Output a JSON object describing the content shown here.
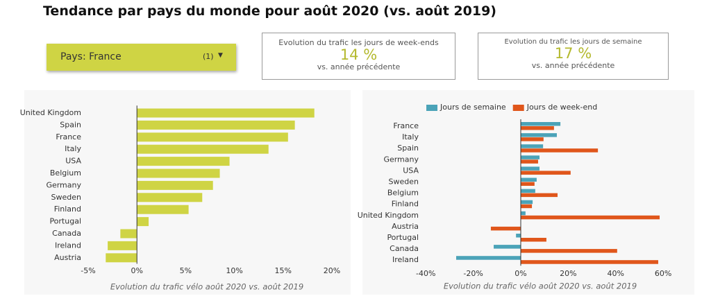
{
  "header": {
    "title": "Tendance par pays du monde pour août 2020 (vs. août 2019)"
  },
  "filter": {
    "label": "Pays:",
    "value": "France",
    "count": "(1)"
  },
  "kpis": [
    {
      "title": "Evolution du trafic les jours de week-ends",
      "value": "14 %",
      "subtitle": "vs. année précédente"
    },
    {
      "title": "Evolution du trafic les jours de semaine",
      "value": "17 %",
      "subtitle": "vs. année précédente"
    }
  ],
  "chart_data": [
    {
      "type": "hbar",
      "x_label": "Evolution du trafic vélo août 2020 vs. août 2019",
      "categories": [
        "United Kingdom",
        "Spain",
        "France",
        "Italy",
        "USA",
        "Belgium",
        "Germany",
        "Sweden",
        "Finland",
        "Portugal",
        "Canada",
        "Ireland",
        "Austria"
      ],
      "values": [
        18.2,
        16.2,
        15.5,
        13.5,
        9.5,
        8.5,
        7.8,
        6.7,
        5.3,
        1.2,
        -1.7,
        -3.0,
        -3.2
      ],
      "color": "#cfd444",
      "xlim": [
        -5.5,
        20.5
      ],
      "xticks": [
        {
          "value": -5,
          "label": "-5%"
        },
        {
          "value": 0,
          "label": "0%"
        },
        {
          "value": 5,
          "label": "5%"
        },
        {
          "value": 10,
          "label": "10%"
        },
        {
          "value": 15,
          "label": "15%"
        },
        {
          "value": 20,
          "label": "20%"
        }
      ],
      "grid": false
    },
    {
      "type": "hbar",
      "x_label": "Evolution du trafic vélo août 2020 vs. août 2019",
      "categories": [
        "France",
        "Italy",
        "Spain",
        "Germany",
        "USA",
        "Sweden",
        "Belgium",
        "Finland",
        "United Kingdom",
        "Austria",
        "Portugal",
        "Canada",
        "Ireland"
      ],
      "series": [
        {
          "name": "Jours de semaine",
          "color": "#4ba3b8",
          "values": [
            16.7,
            15.2,
            9.4,
            7.9,
            7.9,
            6.7,
            6.1,
            5.0,
            2.0,
            0,
            -2.0,
            -11.4,
            -27.2
          ]
        },
        {
          "name": "Jours de week-end",
          "color": "#e0561b",
          "values": [
            14.0,
            9.6,
            32.5,
            7.3,
            21.0,
            5.8,
            15.5,
            4.7,
            58.5,
            -12.6,
            10.8,
            40.6,
            57.9
          ]
        }
      ],
      "xlim": [
        -42,
        62
      ],
      "xticks": [
        {
          "value": -40,
          "label": "-40%"
        },
        {
          "value": -20,
          "label": "-20%"
        },
        {
          "value": 0,
          "label": "0%"
        },
        {
          "value": 20,
          "label": "20%"
        },
        {
          "value": 40,
          "label": "40%"
        },
        {
          "value": 60,
          "label": "60%"
        }
      ],
      "legend": "top-left",
      "grid": false
    }
  ]
}
